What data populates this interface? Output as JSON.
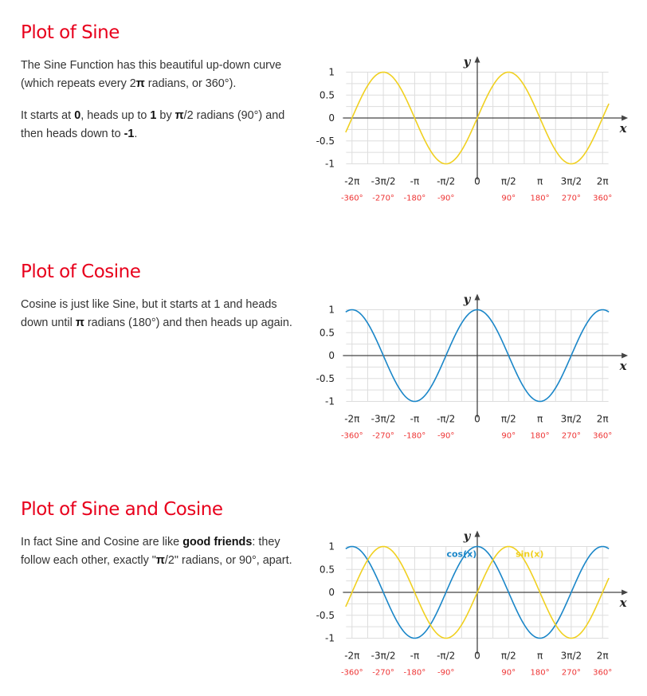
{
  "colors": {
    "heading": "#e8001c",
    "sine": "#f0d020",
    "cosine": "#1a86c8",
    "degree_labels": "#e33333",
    "grid": "#dddddd"
  },
  "sections": [
    {
      "title": "Plot of Sine",
      "paragraphs": [
        [
          "The Sine Function has this beautiful up-down curve (which repeats every 2",
          "π",
          " radians, or 360°)."
        ],
        [
          "It starts at ",
          "0",
          ", heads up to ",
          "1",
          " by ",
          "π",
          "/2 radians (90°) and then heads down to ",
          "-1",
          "."
        ]
      ]
    },
    {
      "title": "Plot of Cosine",
      "paragraphs": [
        [
          "Cosine is just like Sine, but it starts at 1 and heads down until ",
          "π",
          " radians (180°) and then heads up again."
        ]
      ]
    },
    {
      "title": "Plot of Sine and Cosine",
      "paragraphs": [
        [
          "In fact Sine and Cosine are like ",
          "good friends",
          ": they follow each other, exactly \"",
          "π",
          "/2\" radians, or 90°, apart."
        ]
      ]
    }
  ],
  "chart_data": [
    {
      "type": "line",
      "xlabel": "x",
      "ylabel": "y",
      "xlim": [
        -6.6,
        6.6
      ],
      "ylim": [
        -1,
        1
      ],
      "series": [
        {
          "function": "sin",
          "color": "#f0d020"
        }
      ],
      "y_ticks": [
        "1",
        "0.5",
        "0",
        "-0.5",
        "-1"
      ],
      "x_tick_labels": [
        "-2π",
        "-3π/2",
        "-π",
        "-π/2",
        "0",
        "π/2",
        "π",
        "3π/2",
        "2π"
      ],
      "x_tick_values": [
        -6.2832,
        -4.7124,
        -3.1416,
        -1.5708,
        0,
        1.5708,
        3.1416,
        4.7124,
        6.2832
      ],
      "degree_labels": [
        "-360°",
        "-270°",
        "-180°",
        "-90°",
        "",
        "90°",
        "180°",
        "270°",
        "360°"
      ],
      "grid": true
    },
    {
      "type": "line",
      "xlabel": "x",
      "ylabel": "y",
      "xlim": [
        -6.6,
        6.6
      ],
      "ylim": [
        -1,
        1
      ],
      "series": [
        {
          "function": "cos",
          "color": "#1a86c8"
        }
      ],
      "y_ticks": [
        "1",
        "0.5",
        "0",
        "-0.5",
        "-1"
      ],
      "x_tick_labels": [
        "-2π",
        "-3π/2",
        "-π",
        "-π/2",
        "0",
        "π/2",
        "π",
        "3π/2",
        "2π"
      ],
      "x_tick_values": [
        -6.2832,
        -4.7124,
        -3.1416,
        -1.5708,
        0,
        1.5708,
        3.1416,
        4.7124,
        6.2832
      ],
      "degree_labels": [
        "-360°",
        "-270°",
        "-180°",
        "-90°",
        "",
        "90°",
        "180°",
        "270°",
        "360°"
      ],
      "grid": true
    },
    {
      "type": "line",
      "xlabel": "x",
      "ylabel": "y",
      "xlim": [
        -6.6,
        6.6
      ],
      "ylim": [
        -1,
        1
      ],
      "series": [
        {
          "function": "cos",
          "color": "#1a86c8",
          "name": "cos(x)"
        },
        {
          "function": "sin",
          "color": "#f0d020",
          "name": "sin(x)"
        }
      ],
      "y_ticks": [
        "1",
        "0.5",
        "0",
        "-0.5",
        "-1"
      ],
      "x_tick_labels": [
        "-2π",
        "-3π/2",
        "-π",
        "-π/2",
        "0",
        "π/2",
        "π",
        "3π/2",
        "2π"
      ],
      "x_tick_values": [
        -6.2832,
        -4.7124,
        -3.1416,
        -1.5708,
        0,
        1.5708,
        3.1416,
        4.7124,
        6.2832
      ],
      "degree_labels": [
        "-360°",
        "-270°",
        "-180°",
        "-90°",
        "",
        "90°",
        "180°",
        "270°",
        "360°"
      ],
      "grid": true
    }
  ]
}
